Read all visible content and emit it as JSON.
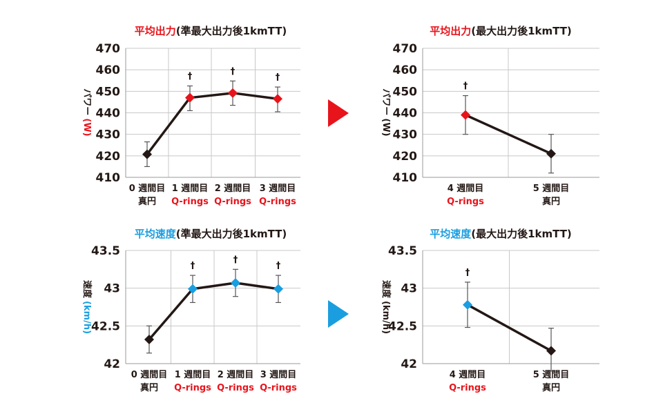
{
  "colors": {
    "red": "#e8141c",
    "blue": "#1a9ee0",
    "dark": "#231815",
    "grid": "#c8c8c8"
  },
  "chart_data": [
    {
      "type": "line",
      "title": {
        "colored": "平均出力",
        "rest": "(準最大出力後1kmTT)",
        "color": "#e8141c"
      },
      "ylabel": {
        "jp": "パワー",
        "unit": "(W)",
        "unit_color": "#e8141c"
      },
      "ylim": [
        410,
        470
      ],
      "yticks": [
        410,
        420,
        430,
        440,
        450,
        460,
        470
      ],
      "categories": [
        {
          "line1": "0 週間目",
          "line2": "真円",
          "line2_color": "#231815"
        },
        {
          "line1": "1 週間目",
          "line2": "Q-rings",
          "line2_color": "#e8141c"
        },
        {
          "line1": "2 週間目",
          "line2": "Q-rings",
          "line2_color": "#e8141c"
        },
        {
          "line1": "3 週間目",
          "line2": "Q-rings",
          "line2_color": "#e8141c"
        }
      ],
      "values": [
        420.7,
        447.0,
        449.2,
        446.5
      ],
      "err_low": [
        415.0,
        441.0,
        443.5,
        440.5
      ],
      "err_high": [
        426.5,
        452.5,
        454.8,
        452.0
      ],
      "marker_colors": [
        "#231815",
        "#e8141c",
        "#e8141c",
        "#e8141c"
      ],
      "annotations": [
        "",
        "†",
        "†",
        "†"
      ]
    },
    {
      "type": "line",
      "title": {
        "colored": "平均出力",
        "rest": "(最大出力後1kmTT)",
        "color": "#e8141c"
      },
      "ylabel": {
        "jp": "パワー",
        "unit": "(W)",
        "unit_color": "#231815"
      },
      "ylim": [
        410,
        470
      ],
      "yticks": [
        410,
        420,
        430,
        440,
        450,
        460,
        470
      ],
      "categories": [
        {
          "line1": "4 週間目",
          "line2": "Q-rings",
          "line2_color": "#e8141c"
        },
        {
          "line1": "5 週間目",
          "line2": "真円",
          "line2_color": "#231815"
        }
      ],
      "values": [
        439.0,
        421.0
      ],
      "err_low": [
        430.0,
        412.0
      ],
      "err_high": [
        448.0,
        430.0
      ],
      "marker_colors": [
        "#e8141c",
        "#231815"
      ],
      "annotations": [
        "†",
        ""
      ]
    },
    {
      "type": "line",
      "title": {
        "colored": "平均速度",
        "rest": "(準最大出力後1kmTT)",
        "color": "#1a9ee0"
      },
      "ylabel": {
        "jp": "速度",
        "unit": "(km/h)",
        "unit_color": "#1a9ee0"
      },
      "ylim": [
        42,
        43.5
      ],
      "yticks": [
        42,
        42.5,
        43,
        43.5
      ],
      "categories": [
        {
          "line1": "0 週間目",
          "line2": "真円",
          "line2_color": "#231815"
        },
        {
          "line1": "1 週間目",
          "line2": "Q-rings",
          "line2_color": "#e8141c"
        },
        {
          "line1": "2 週間目",
          "line2": "Q-rings",
          "line2_color": "#e8141c"
        },
        {
          "line1": "3 週間目",
          "line2": "Q-rings",
          "line2_color": "#e8141c"
        }
      ],
      "values": [
        42.32,
        42.99,
        43.07,
        42.99
      ],
      "err_low": [
        42.14,
        42.81,
        42.89,
        42.81
      ],
      "err_high": [
        42.5,
        43.17,
        43.25,
        43.17
      ],
      "marker_colors": [
        "#231815",
        "#1a9ee0",
        "#1a9ee0",
        "#1a9ee0"
      ],
      "annotations": [
        "",
        "†",
        "†",
        "†"
      ]
    },
    {
      "type": "line",
      "title": {
        "colored": "平均速度",
        "rest": "(最大出力後1kmTT)",
        "color": "#1a9ee0"
      },
      "ylabel": {
        "jp": "速度",
        "unit": "(km/h)",
        "unit_color": "#231815"
      },
      "ylim": [
        42,
        43.5
      ],
      "yticks": [
        42,
        42.5,
        43,
        43.5
      ],
      "categories": [
        {
          "line1": "4 週間目",
          "line2": "Q-rings",
          "line2_color": "#e8141c"
        },
        {
          "line1": "5 週間目",
          "line2": "真円",
          "line2_color": "#231815"
        }
      ],
      "values": [
        42.78,
        42.17
      ],
      "err_low": [
        42.48,
        41.9
      ],
      "err_high": [
        43.08,
        42.47
      ],
      "marker_colors": [
        "#1a9ee0",
        "#231815"
      ],
      "annotations": [
        "†",
        ""
      ]
    }
  ],
  "arrows": [
    {
      "color": "#e8141c"
    },
    {
      "color": "#1a9ee0"
    }
  ]
}
